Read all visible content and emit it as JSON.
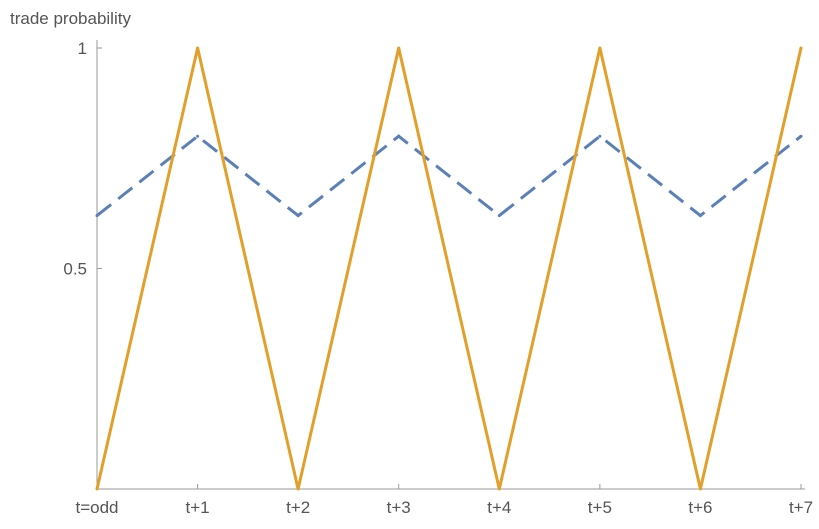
{
  "chart_data": {
    "type": "line",
    "title": "",
    "xlabel": "",
    "ylabel": "trade probability",
    "categories": [
      "t=odd",
      "t+1",
      "t+2",
      "t+3",
      "t+4",
      "t+5",
      "t+6",
      "t+7"
    ],
    "ylim": [
      0,
      1
    ],
    "y_ticks": [
      {
        "value": 0.5,
        "label": "0.5"
      },
      {
        "value": 1,
        "label": "1"
      }
    ],
    "grid": false,
    "series": [
      {
        "style": "dashed",
        "color": "#5b80b8",
        "values": [
          0.62,
          0.8,
          0.62,
          0.8,
          0.62,
          0.8,
          0.62,
          0.8
        ]
      },
      {
        "style": "solid",
        "color": "#e2a02a",
        "values": [
          0,
          1,
          0,
          1,
          0,
          1,
          0,
          1
        ]
      }
    ]
  }
}
